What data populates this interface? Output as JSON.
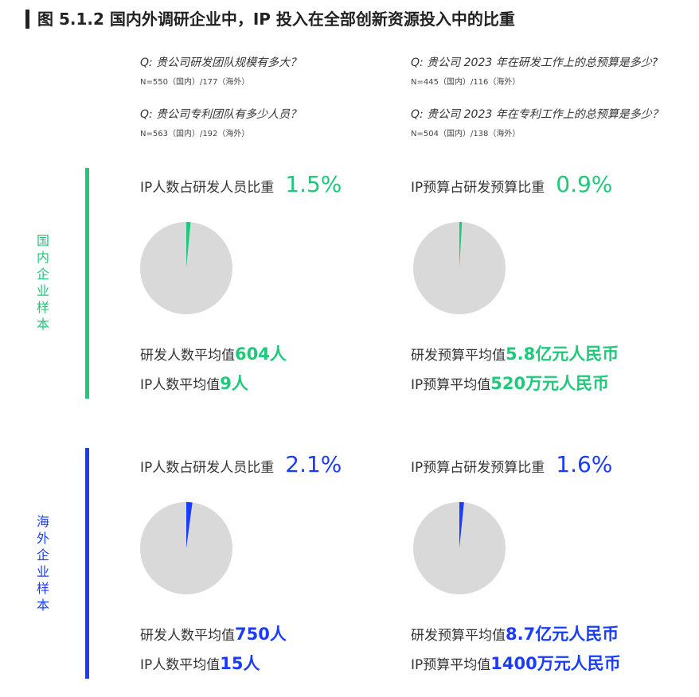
{
  "title": "图 5.1.2 国内外调研企业中，IP 投入在全部创新资源投入中的比重",
  "questions": [
    {
      "q": "Q: 贵公司研发团队规模有多大？",
      "n": "N=550（国内）/177（海外）"
    },
    {
      "q": "Q: 贵公司 2023 年在研发工作上的总预算是多少?",
      "n": "N=445（国内）/116（海外）"
    },
    {
      "q": "Q: 贵公司专利团队有多少人员？",
      "n": "N=563（国内）/192（海外）"
    },
    {
      "q": "Q: 贵公司 2023 年在专利工作上的总预算是多少？",
      "n": "N=504（国内）/138（海外）"
    }
  ],
  "colors": {
    "domestic": "#1fc97a",
    "overseas": "#1a3cff",
    "pie_rest": "#d9d9d9"
  },
  "chart_data": [
    {
      "type": "pie",
      "group": "国内企业样本",
      "title": "IP人数占研发人员比重",
      "value_label": "1.5%",
      "values": [
        1.5,
        98.5
      ],
      "line1_label": "研发人数平均值",
      "line1_value": "604人",
      "line2_label": "IP人数平均值",
      "line2_value": "9人"
    },
    {
      "type": "pie",
      "group": "国内企业样本",
      "title": "IP预算占研发预算比重",
      "value_label": "0.9%",
      "values": [
        0.9,
        99.1
      ],
      "line1_label": "研发预算平均值",
      "line1_value": "5.8亿元人民币",
      "line2_label": "IP预算平均值",
      "line2_value": "520万元人民币"
    },
    {
      "type": "pie",
      "group": "海外企业样本",
      "title": "IP人数占研发人员比重",
      "value_label": "2.1%",
      "values": [
        2.1,
        97.9
      ],
      "line1_label": "研发人数平均值",
      "line1_value": "750人",
      "line2_label": "IP人数平均值",
      "line2_value": "15人"
    },
    {
      "type": "pie",
      "group": "海外企业样本",
      "title": "IP预算占研发预算比重",
      "value_label": "1.6%",
      "values": [
        1.6,
        98.4
      ],
      "line1_label": "研发预算平均值",
      "line1_value": "8.7亿元人民币",
      "line2_label": "IP预算平均值",
      "line2_value": "1400万元人民币"
    }
  ],
  "groups": {
    "domestic": "国内企业样本",
    "overseas": "海外企业样本"
  }
}
